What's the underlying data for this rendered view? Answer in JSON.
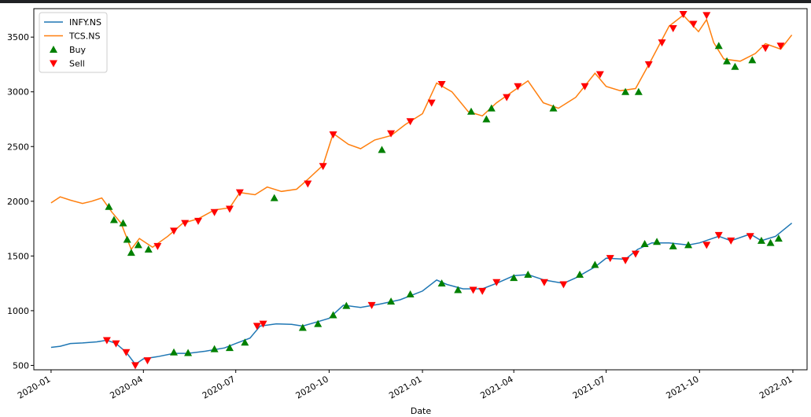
{
  "chart_data": {
    "type": "line",
    "title": "",
    "xlabel": "Date",
    "ylabel": "",
    "xlim": [
      "2019-12-15",
      "2022-01-15"
    ],
    "ylim": [
      460,
      3760
    ],
    "grid": false,
    "legend_placement": "top-left",
    "x_ticks": [
      "2020-01",
      "2020-04",
      "2020-07",
      "2020-10",
      "2021-01",
      "2021-04",
      "2021-07",
      "2021-10",
      "2022-01"
    ],
    "y_ticks": [
      500,
      1000,
      1500,
      2000,
      2500,
      3000,
      3500
    ],
    "legend": [
      {
        "label": "INFY.NS",
        "kind": "line",
        "color": "#1f77b4"
      },
      {
        "label": "TCS.NS",
        "kind": "line",
        "color": "#ff7f0e"
      },
      {
        "label": "Buy",
        "kind": "marker-up",
        "color": "#008000"
      },
      {
        "label": "Sell",
        "kind": "marker-down",
        "color": "#ff0000"
      }
    ],
    "series": [
      {
        "name": "INFY.NS",
        "color": "#1f77b4",
        "points": [
          [
            "2020-01-01",
            665
          ],
          [
            "2020-01-10",
            675
          ],
          [
            "2020-01-20",
            700
          ],
          [
            "2020-02-01",
            705
          ],
          [
            "2020-02-15",
            715
          ],
          [
            "2020-02-25",
            730
          ],
          [
            "2020-03-05",
            700
          ],
          [
            "2020-03-15",
            620
          ],
          [
            "2020-03-24",
            510
          ],
          [
            "2020-04-01",
            560
          ],
          [
            "2020-04-15",
            580
          ],
          [
            "2020-05-01",
            610
          ],
          [
            "2020-05-15",
            610
          ],
          [
            "2020-06-01",
            630
          ],
          [
            "2020-06-20",
            660
          ],
          [
            "2020-07-01",
            700
          ],
          [
            "2020-07-15",
            750
          ],
          [
            "2020-07-25",
            860
          ],
          [
            "2020-08-10",
            880
          ],
          [
            "2020-08-25",
            875
          ],
          [
            "2020-09-05",
            860
          ],
          [
            "2020-09-20",
            900
          ],
          [
            "2020-10-01",
            930
          ],
          [
            "2020-10-15",
            1050
          ],
          [
            "2020-11-01",
            1030
          ],
          [
            "2020-11-20",
            1060
          ],
          [
            "2020-12-10",
            1100
          ],
          [
            "2021-01-01",
            1180
          ],
          [
            "2021-01-15",
            1280
          ],
          [
            "2021-01-25",
            1240
          ],
          [
            "2021-02-10",
            1200
          ],
          [
            "2021-03-01",
            1200
          ],
          [
            "2021-03-15",
            1250
          ],
          [
            "2021-04-01",
            1320
          ],
          [
            "2021-04-15",
            1330
          ],
          [
            "2021-05-01",
            1280
          ],
          [
            "2021-05-20",
            1250
          ],
          [
            "2021-06-01",
            1300
          ],
          [
            "2021-06-20",
            1400
          ],
          [
            "2021-07-01",
            1480
          ],
          [
            "2021-07-20",
            1470
          ],
          [
            "2021-08-01",
            1560
          ],
          [
            "2021-08-15",
            1620
          ],
          [
            "2021-09-01",
            1620
          ],
          [
            "2021-09-20",
            1600
          ],
          [
            "2021-10-01",
            1620
          ],
          [
            "2021-10-20",
            1680
          ],
          [
            "2021-11-01",
            1640
          ],
          [
            "2021-11-20",
            1700
          ],
          [
            "2021-12-01",
            1640
          ],
          [
            "2021-12-15",
            1680
          ],
          [
            "2021-12-31",
            1800
          ]
        ]
      },
      {
        "name": "TCS.NS",
        "color": "#ff7f0e",
        "points": [
          [
            "2020-01-01",
            1985
          ],
          [
            "2020-01-10",
            2040
          ],
          [
            "2020-01-20",
            2010
          ],
          [
            "2020-02-01",
            1980
          ],
          [
            "2020-02-10",
            2000
          ],
          [
            "2020-02-20",
            2030
          ],
          [
            "2020-03-01",
            1900
          ],
          [
            "2020-03-10",
            1800
          ],
          [
            "2020-03-20",
            1560
          ],
          [
            "2020-03-28",
            1660
          ],
          [
            "2020-04-10",
            1580
          ],
          [
            "2020-04-25",
            1680
          ],
          [
            "2020-05-10",
            1800
          ],
          [
            "2020-05-25",
            1840
          ],
          [
            "2020-06-10",
            1920
          ],
          [
            "2020-06-25",
            1940
          ],
          [
            "2020-07-05",
            2080
          ],
          [
            "2020-07-20",
            2060
          ],
          [
            "2020-08-01",
            2130
          ],
          [
            "2020-08-15",
            2090
          ],
          [
            "2020-08-30",
            2110
          ],
          [
            "2020-09-10",
            2200
          ],
          [
            "2020-09-25",
            2330
          ],
          [
            "2020-10-05",
            2620
          ],
          [
            "2020-10-20",
            2520
          ],
          [
            "2020-11-01",
            2480
          ],
          [
            "2020-11-15",
            2560
          ],
          [
            "2020-12-01",
            2600
          ],
          [
            "2020-12-15",
            2700
          ],
          [
            "2021-01-01",
            2800
          ],
          [
            "2021-01-15",
            3080
          ],
          [
            "2021-01-30",
            3000
          ],
          [
            "2021-02-15",
            2820
          ],
          [
            "2021-03-01",
            2780
          ],
          [
            "2021-03-15",
            2900
          ],
          [
            "2021-04-01",
            3010
          ],
          [
            "2021-04-15",
            3100
          ],
          [
            "2021-04-30",
            2900
          ],
          [
            "2021-05-15",
            2850
          ],
          [
            "2021-06-01",
            2950
          ],
          [
            "2021-06-20",
            3170
          ],
          [
            "2021-07-01",
            3050
          ],
          [
            "2021-07-15",
            3010
          ],
          [
            "2021-07-30",
            3030
          ],
          [
            "2021-08-15",
            3300
          ],
          [
            "2021-09-01",
            3600
          ],
          [
            "2021-09-15",
            3700
          ],
          [
            "2021-09-30",
            3550
          ],
          [
            "2021-10-08",
            3660
          ],
          [
            "2021-10-15",
            3450
          ],
          [
            "2021-10-25",
            3300
          ],
          [
            "2021-11-10",
            3280
          ],
          [
            "2021-11-25",
            3350
          ],
          [
            "2021-12-05",
            3440
          ],
          [
            "2021-12-20",
            3390
          ],
          [
            "2021-12-31",
            3520
          ]
        ]
      }
    ],
    "signals": {
      "buy": [
        [
          "2020-02-27",
          1950
        ],
        [
          "2020-03-03",
          1830
        ],
        [
          "2020-03-12",
          1800
        ],
        [
          "2020-03-16",
          1650
        ],
        [
          "2020-03-20",
          1530
        ],
        [
          "2020-03-27",
          1600
        ],
        [
          "2020-04-06",
          1560
        ],
        [
          "2020-08-08",
          2030
        ],
        [
          "2020-11-22",
          2470
        ],
        [
          "2021-02-18",
          2820
        ],
        [
          "2021-03-05",
          2750
        ],
        [
          "2021-03-10",
          2850
        ],
        [
          "2021-05-10",
          2850
        ],
        [
          "2021-07-20",
          3000
        ],
        [
          "2021-08-02",
          3000
        ],
        [
          "2021-10-20",
          3420
        ],
        [
          "2021-10-28",
          3280
        ],
        [
          "2021-11-05",
          3230
        ],
        [
          "2021-11-22",
          3290
        ],
        [
          "2020-05-01",
          620
        ],
        [
          "2020-05-15",
          615
        ],
        [
          "2020-06-10",
          650
        ],
        [
          "2020-06-25",
          660
        ],
        [
          "2020-07-10",
          710
        ],
        [
          "2020-09-05",
          845
        ],
        [
          "2020-09-20",
          880
        ],
        [
          "2020-10-05",
          960
        ],
        [
          "2020-10-18",
          1045
        ],
        [
          "2020-12-01",
          1085
        ],
        [
          "2020-12-20",
          1150
        ],
        [
          "2021-01-20",
          1250
        ],
        [
          "2021-02-05",
          1190
        ],
        [
          "2021-04-01",
          1300
        ],
        [
          "2021-04-15",
          1330
        ],
        [
          "2021-06-05",
          1330
        ],
        [
          "2021-06-20",
          1420
        ],
        [
          "2021-08-08",
          1610
        ],
        [
          "2021-08-20",
          1630
        ],
        [
          "2021-09-05",
          1590
        ],
        [
          "2021-09-20",
          1600
        ],
        [
          "2021-12-01",
          1640
        ],
        [
          "2021-12-10",
          1620
        ],
        [
          "2021-12-18",
          1660
        ]
      ],
      "sell": [
        [
          "2020-04-15",
          1590
        ],
        [
          "2020-05-01",
          1730
        ],
        [
          "2020-05-12",
          1800
        ],
        [
          "2020-05-25",
          1820
        ],
        [
          "2020-06-10",
          1900
        ],
        [
          "2020-06-25",
          1930
        ],
        [
          "2020-07-05",
          2080
        ],
        [
          "2020-09-10",
          2160
        ],
        [
          "2020-09-25",
          2320
        ],
        [
          "2020-10-05",
          2610
        ],
        [
          "2020-12-01",
          2620
        ],
        [
          "2020-12-20",
          2730
        ],
        [
          "2021-01-10",
          2900
        ],
        [
          "2021-01-20",
          3070
        ],
        [
          "2021-03-25",
          2950
        ],
        [
          "2021-04-05",
          3050
        ],
        [
          "2021-06-10",
          3050
        ],
        [
          "2021-06-25",
          3160
        ],
        [
          "2021-08-12",
          3250
        ],
        [
          "2021-08-25",
          3450
        ],
        [
          "2021-09-05",
          3580
        ],
        [
          "2021-09-15",
          3710
        ],
        [
          "2021-09-25",
          3620
        ],
        [
          "2021-10-08",
          3700
        ],
        [
          "2021-12-05",
          3400
        ],
        [
          "2021-12-20",
          3420
        ],
        [
          "2020-02-25",
          730
        ],
        [
          "2020-03-05",
          700
        ],
        [
          "2020-03-15",
          620
        ],
        [
          "2020-03-24",
          500
        ],
        [
          "2020-04-05",
          545
        ],
        [
          "2020-07-22",
          860
        ],
        [
          "2020-07-28",
          880
        ],
        [
          "2020-11-12",
          1050
        ],
        [
          "2021-02-20",
          1190
        ],
        [
          "2021-03-01",
          1180
        ],
        [
          "2021-03-15",
          1260
        ],
        [
          "2021-05-01",
          1260
        ],
        [
          "2021-05-20",
          1240
        ],
        [
          "2021-07-05",
          1480
        ],
        [
          "2021-07-20",
          1460
        ],
        [
          "2021-07-30",
          1520
        ],
        [
          "2021-10-08",
          1600
        ],
        [
          "2021-10-20",
          1690
        ],
        [
          "2021-11-01",
          1640
        ],
        [
          "2021-11-20",
          1680
        ]
      ]
    }
  }
}
